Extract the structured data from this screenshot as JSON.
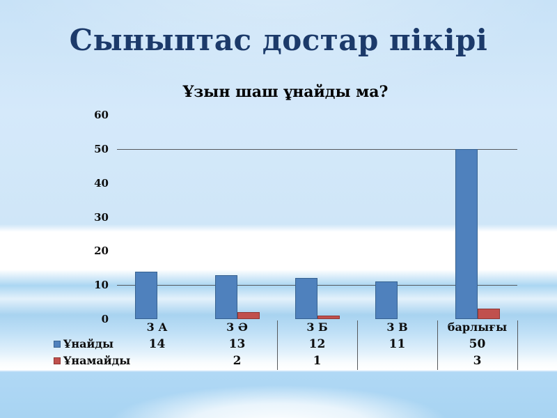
{
  "slide": {
    "title": "Сыныптас достар пікірі"
  },
  "chart_data": {
    "type": "bar",
    "title": "Ұзын шаш ұнайды ма?",
    "categories": [
      "3 А",
      "3 Ә",
      "3 Б",
      "3 В",
      "барлығы"
    ],
    "series": [
      {
        "name": "Ұнайды",
        "values": [
          14,
          13,
          12,
          11,
          50
        ],
        "color": "#4f81bd",
        "border_color": "#36618f"
      },
      {
        "name": "Ұнамайды",
        "values": [
          null,
          2,
          1,
          null,
          3
        ],
        "color": "#c0504d",
        "border_color": "#8e3532"
      }
    ],
    "ylim": [
      0,
      60
    ],
    "yticks": [
      0,
      10,
      20,
      30,
      40,
      50,
      60
    ],
    "gridlines_at": [
      10,
      50
    ],
    "legend_position": "left-of-data-table",
    "data_table_shown": true
  },
  "colors": {
    "title_text": "#1c3a6a",
    "chart_text": "#0d0d0d",
    "gridline": "#55585c",
    "background_top": "#c8e2f7",
    "background_band": "#ffffff",
    "background_bottom": "#a8d4f2"
  }
}
